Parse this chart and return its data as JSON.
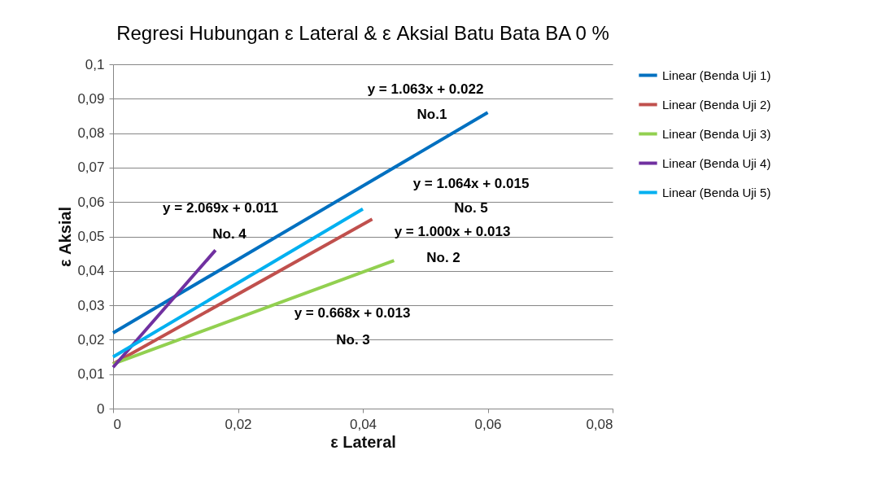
{
  "chart_data": {
    "type": "line",
    "title": "Regresi Hubungan ε Lateral & ε Aksial Batu Bata BA 0 %",
    "xlabel": "ε Lateral",
    "ylabel": "ε Aksial",
    "xlim": [
      0,
      0.08
    ],
    "ylim": [
      0,
      0.1
    ],
    "xticks": [
      0,
      {
        "value": 0.02,
        "label": "0,02"
      },
      {
        "value": 0.04,
        "label": "0,04"
      },
      {
        "value": 0.06,
        "label": "0,06"
      },
      {
        "value": 0.08,
        "label": "0,08"
      }
    ],
    "yticks": [
      0,
      {
        "value": 0.01,
        "label": "0,01"
      },
      {
        "value": 0.02,
        "label": "0,02"
      },
      {
        "value": 0.03,
        "label": "0,03"
      },
      {
        "value": 0.04,
        "label": "0,04"
      },
      {
        "value": 0.05,
        "label": "0,05"
      },
      {
        "value": 0.06,
        "label": "0,06"
      },
      {
        "value": 0.07,
        "label": "0,07"
      },
      {
        "value": 0.08,
        "label": "0,08"
      },
      {
        "value": 0.09,
        "label": "0,09"
      },
      {
        "value": 0.1,
        "label": "0,1"
      }
    ],
    "grid": "y",
    "legend": "right",
    "marker": "none",
    "line_style": "solid",
    "series": [
      {
        "name": "Linear (Benda Uji 1)",
        "color": "#0070c0",
        "x": [
          0,
          0.06
        ],
        "values": [
          0.022,
          0.086
        ]
      },
      {
        "name": "Linear (Benda Uji 2)",
        "color": "#c0504d",
        "x": [
          0,
          0.0415
        ],
        "values": [
          0.013,
          0.055
        ]
      },
      {
        "name": "Linear (Benda Uji 3)",
        "color": "#92d050",
        "x": [
          0,
          0.045
        ],
        "values": [
          0.013,
          0.043
        ]
      },
      {
        "name": "Linear (Benda Uji 4)",
        "color": "#7030a0",
        "x": [
          0,
          0.0164
        ],
        "values": [
          0.012,
          0.046
        ]
      },
      {
        "name": "Linear (Benda Uji 5)",
        "color": "#00b0f0",
        "x": [
          0,
          0.04
        ],
        "values": [
          0.015,
          0.058
        ]
      }
    ],
    "annotations": [
      "y = 1.063x + 0.022",
      "No.1",
      "y = 1.064x + 0.015",
      "No. 5",
      "y = 1.000x + 0.013",
      "No. 2",
      "y = 0.668x + 0.013",
      "No. 3",
      "y = 2.069x + 0.011",
      "No.  4"
    ]
  }
}
